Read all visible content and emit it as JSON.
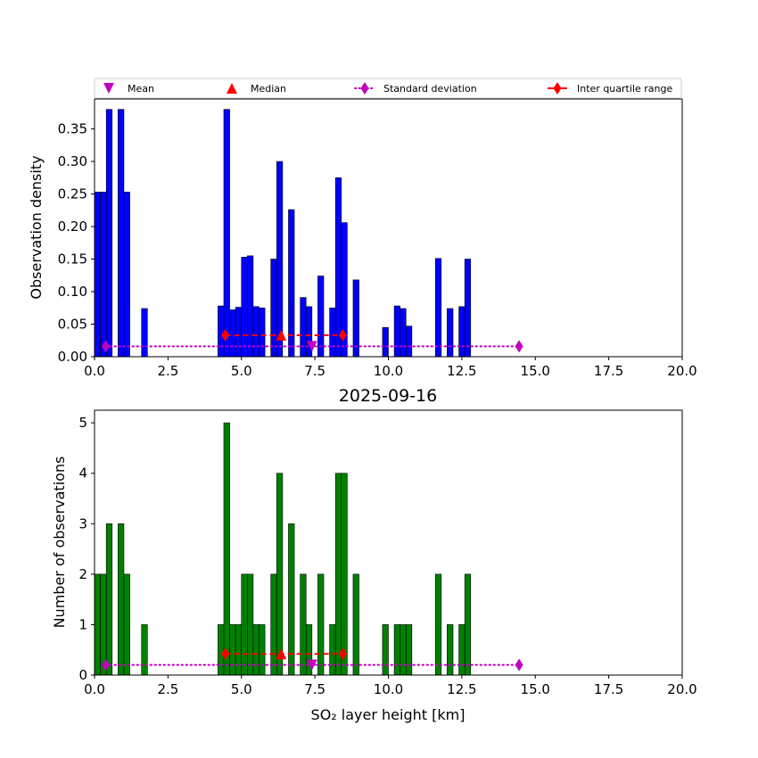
{
  "chart_data": [
    {
      "type": "bar",
      "panel": "top",
      "bar_color": "#0000ff",
      "ylabel": "Observation density",
      "xlim": [
        0,
        20
      ],
      "ylim": [
        0,
        0.396
      ],
      "xticks": [
        "0.0",
        "2.5",
        "5.0",
        "7.5",
        "10.0",
        "12.5",
        "15.0",
        "17.5",
        "20.0"
      ],
      "yticks": [
        "0.00",
        "0.05",
        "0.10",
        "0.15",
        "0.20",
        "0.25",
        "0.30",
        "0.35"
      ],
      "bin_width": 0.2,
      "bars": [
        {
          "x": 0.1,
          "value": 0.253
        },
        {
          "x": 0.3,
          "value": 0.253
        },
        {
          "x": 0.5,
          "value": 0.38
        },
        {
          "x": 0.9,
          "value": 0.38
        },
        {
          "x": 1.1,
          "value": 0.253
        },
        {
          "x": 1.7,
          "value": 0.074
        },
        {
          "x": 4.3,
          "value": 0.078
        },
        {
          "x": 4.5,
          "value": 0.38
        },
        {
          "x": 4.7,
          "value": 0.072
        },
        {
          "x": 4.9,
          "value": 0.076
        },
        {
          "x": 5.1,
          "value": 0.153
        },
        {
          "x": 5.3,
          "value": 0.155
        },
        {
          "x": 5.5,
          "value": 0.077
        },
        {
          "x": 5.7,
          "value": 0.075
        },
        {
          "x": 6.1,
          "value": 0.15
        },
        {
          "x": 6.3,
          "value": 0.3
        },
        {
          "x": 6.7,
          "value": 0.226
        },
        {
          "x": 7.1,
          "value": 0.091
        },
        {
          "x": 7.3,
          "value": 0.077
        },
        {
          "x": 7.7,
          "value": 0.124
        },
        {
          "x": 8.1,
          "value": 0.075
        },
        {
          "x": 8.3,
          "value": 0.275
        },
        {
          "x": 8.5,
          "value": 0.206
        },
        {
          "x": 8.9,
          "value": 0.118
        },
        {
          "x": 9.9,
          "value": 0.045
        },
        {
          "x": 10.3,
          "value": 0.078
        },
        {
          "x": 10.5,
          "value": 0.074
        },
        {
          "x": 10.7,
          "value": 0.047
        },
        {
          "x": 11.7,
          "value": 0.151
        },
        {
          "x": 12.1,
          "value": 0.074
        },
        {
          "x": 12.5,
          "value": 0.077
        },
        {
          "x": 12.7,
          "value": 0.15
        }
      ],
      "stats_y": {
        "std": 0.016,
        "iqr": 0.033,
        "mean": 0.016,
        "median": 0.033
      }
    },
    {
      "type": "bar",
      "panel": "bottom",
      "title": "2025-09-16",
      "bar_color": "#008000",
      "xlabel": "SO₂ layer height [km]",
      "ylabel": "Number of observations",
      "xlim": [
        0,
        20
      ],
      "ylim": [
        0,
        5.25
      ],
      "xticks": [
        "0.0",
        "2.5",
        "5.0",
        "7.5",
        "10.0",
        "12.5",
        "15.0",
        "17.5",
        "20.0"
      ],
      "yticks": [
        "0",
        "1",
        "2",
        "3",
        "4",
        "5"
      ],
      "bin_width": 0.2,
      "bars": [
        {
          "x": 0.1,
          "value": 2
        },
        {
          "x": 0.3,
          "value": 2
        },
        {
          "x": 0.5,
          "value": 3
        },
        {
          "x": 0.9,
          "value": 3
        },
        {
          "x": 1.1,
          "value": 2
        },
        {
          "x": 1.7,
          "value": 1
        },
        {
          "x": 4.3,
          "value": 1
        },
        {
          "x": 4.5,
          "value": 5
        },
        {
          "x": 4.7,
          "value": 1
        },
        {
          "x": 4.9,
          "value": 1
        },
        {
          "x": 5.1,
          "value": 2
        },
        {
          "x": 5.3,
          "value": 2
        },
        {
          "x": 5.5,
          "value": 1
        },
        {
          "x": 5.7,
          "value": 1
        },
        {
          "x": 6.1,
          "value": 2
        },
        {
          "x": 6.3,
          "value": 4
        },
        {
          "x": 6.7,
          "value": 3
        },
        {
          "x": 7.1,
          "value": 2
        },
        {
          "x": 7.3,
          "value": 1
        },
        {
          "x": 7.7,
          "value": 2
        },
        {
          "x": 8.1,
          "value": 1
        },
        {
          "x": 8.3,
          "value": 4
        },
        {
          "x": 8.5,
          "value": 4
        },
        {
          "x": 8.9,
          "value": 2
        },
        {
          "x": 9.9,
          "value": 1
        },
        {
          "x": 10.3,
          "value": 1
        },
        {
          "x": 10.5,
          "value": 1
        },
        {
          "x": 10.7,
          "value": 1
        },
        {
          "x": 11.7,
          "value": 2
        },
        {
          "x": 12.1,
          "value": 1
        },
        {
          "x": 12.5,
          "value": 1
        },
        {
          "x": 12.7,
          "value": 2
        }
      ],
      "stats_y": {
        "std": 0.2,
        "iqr": 0.42,
        "mean": 0.2,
        "median": 0.42
      }
    }
  ],
  "statistics": {
    "mean": 7.4,
    "median": 6.35,
    "std_range": [
      0.38,
      14.45
    ],
    "iqr_range": [
      4.45,
      8.45
    ]
  },
  "legend": {
    "placement": "above top panel",
    "mean_label": "Mean",
    "median_label": "Median",
    "std_label": "Standard deviation",
    "iqr_label": "Inter quartile range",
    "mean_color": "#bf00bf",
    "median_color": "#ff0000",
    "std_color": "#bf00bf",
    "iqr_color": "#ff0000"
  }
}
